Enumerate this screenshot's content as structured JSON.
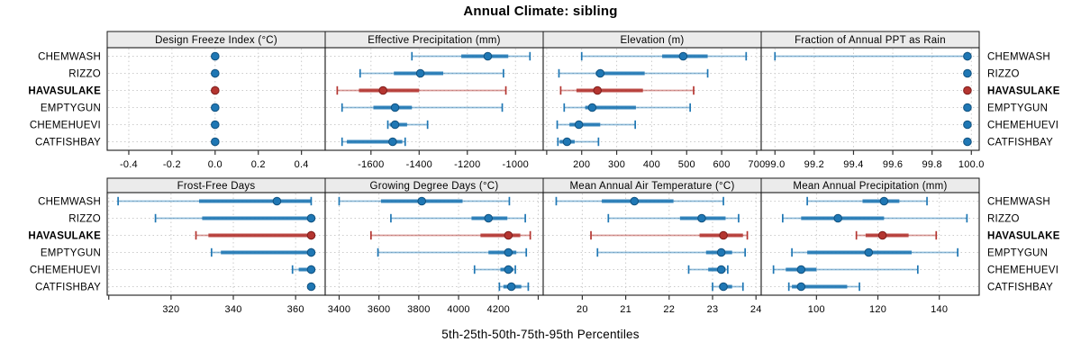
{
  "chart_data": {
    "type": "dotplot-percentiles",
    "title": "Annual Climate: sibling",
    "xlabel": "5th-25th-50th-75th-95th Percentiles",
    "stations": [
      "CHEMWASH",
      "RIZZO",
      "HAVASULAKE",
      "EMPTYGUN",
      "CHEMEHUEVI",
      "CATFISHBAY"
    ],
    "highlight_station": "HAVASULAKE",
    "colors": {
      "normal": "#1F77B4",
      "normal_edge": "#10517F",
      "highlight": "#B43530",
      "highlight_edge": "#7E1D1B",
      "grid": "#CBCBCB",
      "strip_fill": "#EBEBEB",
      "panel_border": "#1A1A1A",
      "tick": "#333333",
      "text": "#000000"
    },
    "legend_note": "percentile whisker plot: thin line 5th-95th, thick bar 25th-75th, dot = median",
    "panels": [
      {
        "title": "Design Freeze Index (°C)",
        "xlim": [
          -0.5,
          0.51
        ],
        "ticks": {
          "values": [
            -0.4,
            -0.2,
            0.0,
            0.2,
            0.4
          ],
          "labels": [
            "-0.4",
            "-0.2",
            "0.0",
            "0.2",
            "0.4"
          ]
        },
        "data": {
          "CHEMWASH": [
            0,
            0,
            0,
            0,
            0
          ],
          "RIZZO": [
            0,
            0,
            0,
            0,
            0
          ],
          "HAVASULAKE": [
            0,
            0,
            0,
            0,
            0
          ],
          "EMPTYGUN": [
            0,
            0,
            0,
            0,
            0
          ],
          "CHEMEHUEVI": [
            0,
            0,
            0,
            0,
            0
          ],
          "CATFISHBAY": [
            0,
            0,
            0,
            0,
            0
          ]
        }
      },
      {
        "title": "Effective Precipitation (mm)",
        "xlim": [
          -1790,
          -885
        ],
        "ticks": {
          "values": [
            -1600,
            -1400,
            -1200,
            -1000
          ],
          "labels": [
            "-1600",
            "-1400",
            "-1200",
            "-1000"
          ]
        },
        "data": {
          "CHEMWASH": [
            -1430,
            -1225,
            -1115,
            -1030,
            -940
          ],
          "RIZZO": [
            -1645,
            -1505,
            -1395,
            -1300,
            -1050
          ],
          "HAVASULAKE": [
            -1740,
            -1650,
            -1550,
            -1400,
            -1040
          ],
          "EMPTYGUN": [
            -1720,
            -1590,
            -1500,
            -1430,
            -1055
          ],
          "CHEMEHUEVI": [
            -1530,
            -1522,
            -1500,
            -1450,
            -1365
          ],
          "CATFISHBAY": [
            -1720,
            -1700,
            -1510,
            -1470,
            -1458
          ]
        }
      },
      {
        "title": "Elevation (m)",
        "xlim": [
          90,
          713
        ],
        "ticks": {
          "values": [
            100,
            200,
            300,
            400,
            500,
            600,
            700
          ],
          "labels": [
            "",
            "200",
            "300",
            "400",
            "500",
            "600",
            "700"
          ]
        },
        "data": {
          "CHEMWASH": [
            200,
            430,
            490,
            560,
            670
          ],
          "RIZZO": [
            135,
            240,
            253,
            380,
            560
          ],
          "HAVASULAKE": [
            140,
            185,
            245,
            375,
            520
          ],
          "EMPTYGUN": [
            150,
            210,
            230,
            355,
            510
          ],
          "CHEMEHUEVI": [
            130,
            165,
            192,
            253,
            353
          ],
          "CATFISHBAY": [
            132,
            137,
            158,
            180,
            248
          ]
        }
      },
      {
        "title": "Fraction of Annual PPT as Rain",
        "xlim": [
          98.93,
          100.04
        ],
        "ticks": {
          "values": [
            99.0,
            99.2,
            99.4,
            99.6,
            99.8,
            100.0
          ],
          "labels": [
            "99.0",
            "99.2",
            "99.4",
            "99.6",
            "99.8",
            "100.0"
          ]
        },
        "data": {
          "CHEMWASH": [
            99.0,
            99.96,
            99.98,
            99.98,
            99.98
          ],
          "RIZZO": [
            99.98,
            99.98,
            99.98,
            99.98,
            99.98
          ],
          "HAVASULAKE": [
            99.98,
            99.98,
            99.98,
            99.98,
            99.98
          ],
          "EMPTYGUN": [
            99.98,
            99.98,
            99.98,
            99.98,
            99.98
          ],
          "CHEMEHUEVI": [
            99.98,
            99.98,
            99.98,
            99.98,
            99.98
          ],
          "CATFISHBAY": [
            99.98,
            99.98,
            99.98,
            99.98,
            99.98
          ]
        }
      },
      {
        "title": "Frost-Free Days",
        "xlim": [
          299.5,
          369.5
        ],
        "ticks": {
          "values": [
            300,
            320,
            340,
            360
          ],
          "labels": [
            "",
            "320",
            "340",
            "360"
          ]
        },
        "data": {
          "CHEMWASH": [
            303,
            329,
            354,
            365,
            365
          ],
          "RIZZO": [
            315,
            330,
            365,
            365,
            365
          ],
          "HAVASULAKE": [
            328,
            332,
            365,
            365,
            365
          ],
          "EMPTYGUN": [
            333,
            336,
            365,
            365,
            365
          ],
          "CHEMEHUEVI": [
            359,
            361,
            365,
            365,
            365
          ],
          "CATFISHBAY": [
            365,
            365,
            365,
            365,
            365
          ]
        }
      },
      {
        "title": "Growing Degree Days (°C)",
        "xlim": [
          3330,
          4425
        ],
        "ticks": {
          "values": [
            3400,
            3600,
            3800,
            4000,
            4200,
            4400
          ],
          "labels": [
            "3400",
            "3600",
            "3800",
            "4000",
            "4200",
            ""
          ]
        },
        "data": {
          "CHEMWASH": [
            3400,
            3610,
            3815,
            4020,
            4255
          ],
          "RIZZO": [
            3660,
            4065,
            4150,
            4245,
            4335
          ],
          "HAVASULAKE": [
            3560,
            4110,
            4250,
            4310,
            4360
          ],
          "EMPTYGUN": [
            3595,
            4150,
            4250,
            4290,
            4340
          ],
          "CHEMEHUEVI": [
            4080,
            4210,
            4250,
            4275,
            4285
          ],
          "CATFISHBAY": [
            4205,
            4225,
            4265,
            4315,
            4350
          ]
        }
      },
      {
        "title": "Mean Annual Air Temperature (°C)",
        "xlim": [
          19.1,
          24.12
        ],
        "ticks": {
          "values": [
            20,
            21,
            22,
            23,
            24
          ],
          "labels": [
            "20",
            "21",
            "22",
            "23",
            "24"
          ]
        },
        "data": {
          "CHEMWASH": [
            19.4,
            20.45,
            21.2,
            22.1,
            23.25
          ],
          "RIZZO": [
            20.6,
            22.25,
            22.75,
            23.3,
            23.6
          ],
          "HAVASULAKE": [
            20.2,
            22.7,
            23.25,
            23.7,
            23.8
          ],
          "EMPTYGUN": [
            20.35,
            22.85,
            23.2,
            23.45,
            23.75
          ],
          "CHEMEHUEVI": [
            22.45,
            22.9,
            23.2,
            23.3,
            23.35
          ],
          "CATFISHBAY": [
            23.0,
            23.15,
            23.25,
            23.45,
            23.7
          ]
        }
      },
      {
        "title": "Mean Annual Precipitation (mm)",
        "xlim": [
          82,
          153
        ],
        "ticks": {
          "values": [
            100,
            120,
            140
          ],
          "labels": [
            "100",
            "120",
            "140"
          ]
        },
        "data": {
          "CHEMWASH": [
            97,
            115,
            122,
            127,
            136
          ],
          "RIZZO": [
            89,
            95,
            107,
            122,
            149
          ],
          "HAVASULAKE": [
            113,
            116,
            121.5,
            130,
            139
          ],
          "EMPTYGUN": [
            92,
            97,
            117,
            131,
            146
          ],
          "CHEMEHUEVI": [
            86,
            90,
            95,
            100,
            133
          ],
          "CATFISHBAY": [
            91,
            92,
            95,
            110,
            114
          ]
        }
      }
    ]
  }
}
